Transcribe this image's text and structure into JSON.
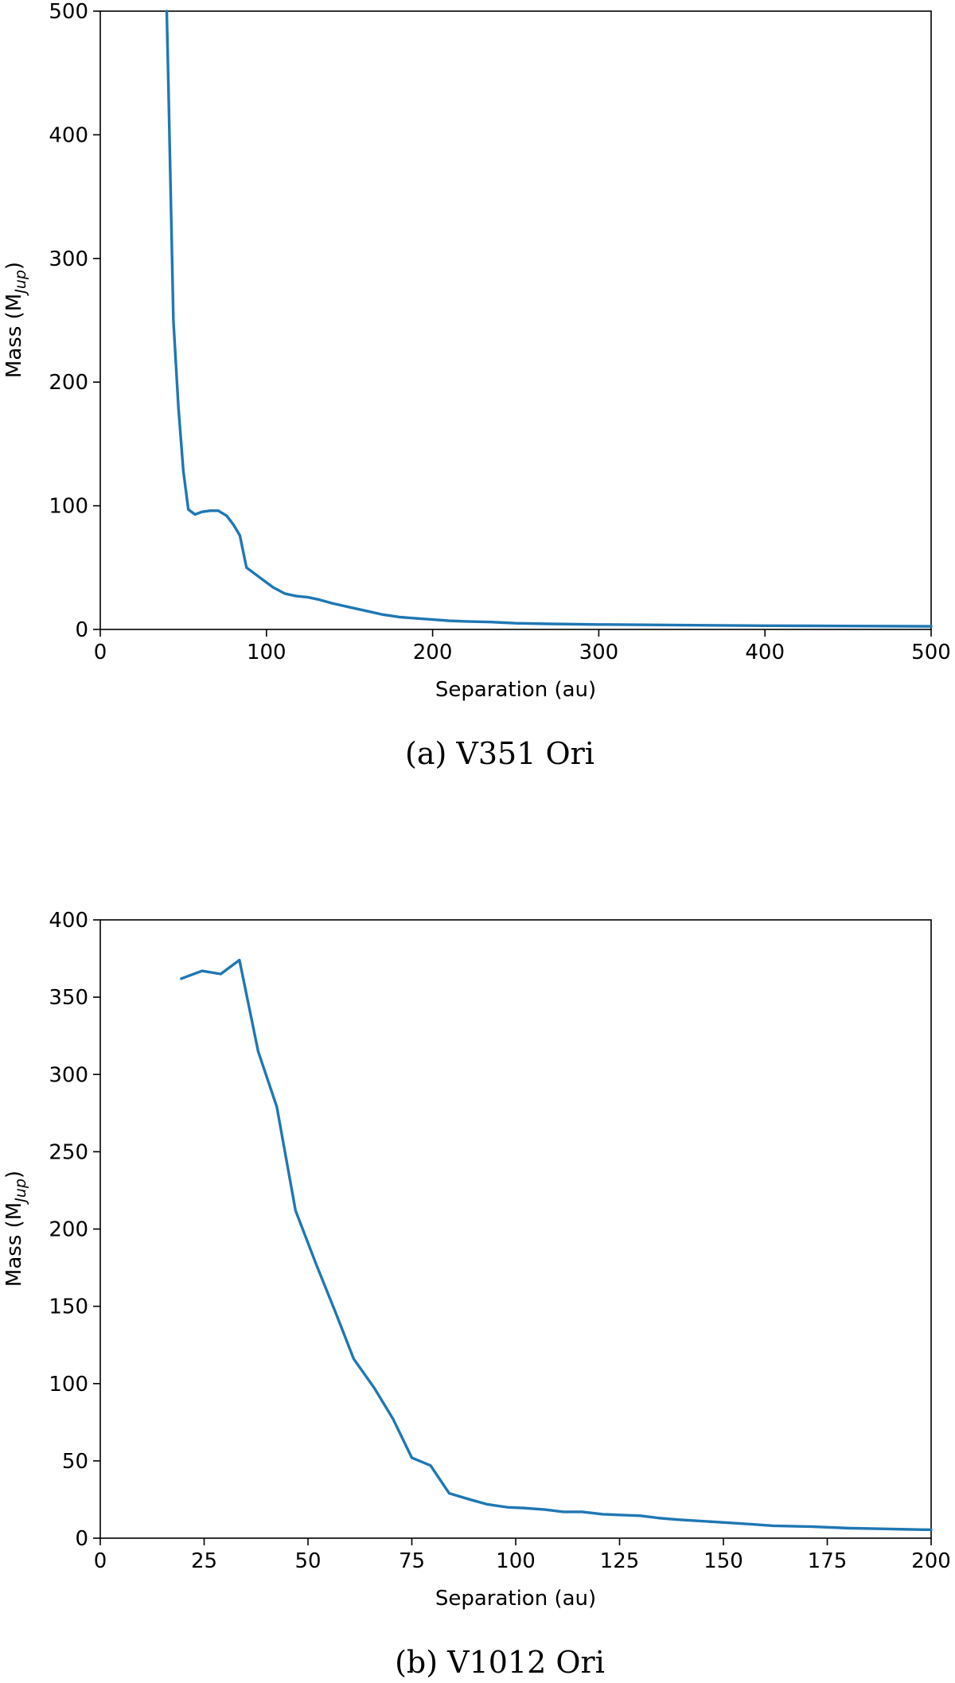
{
  "chart_data": [
    {
      "type": "line",
      "caption": "(a) V351 Ori",
      "xlabel": "Separation (au)",
      "ylabel_main": "Mass (M",
      "ylabel_sub": "Jup",
      "ylabel_end": ")",
      "xlim": [
        0,
        500
      ],
      "ylim": [
        0,
        500
      ],
      "xticks": [
        0,
        100,
        200,
        300,
        400,
        500
      ],
      "yticks": [
        0,
        100,
        200,
        300,
        400,
        500
      ],
      "color": "#1f77b4",
      "x": [
        40,
        41,
        44,
        47,
        50,
        53,
        57,
        61,
        66,
        71,
        76,
        80,
        84,
        88,
        93,
        98,
        104,
        111,
        118,
        125,
        132,
        140,
        150,
        160,
        170,
        180,
        190,
        200,
        210,
        220,
        235,
        250,
        270,
        300,
        350,
        400,
        450,
        500
      ],
      "series": [
        {
          "values": [
            500,
            440,
            250,
            180,
            128,
            97,
            93,
            95,
            96,
            96,
            92,
            85,
            76,
            50,
            45,
            40,
            34,
            29,
            27,
            26,
            24,
            21,
            18,
            15,
            12,
            10,
            9,
            8,
            7,
            6.5,
            6,
            5,
            4.5,
            4,
            3.5,
            3,
            2.8,
            2.5
          ]
        }
      ]
    },
    {
      "type": "line",
      "caption": "(b) V1012 Ori",
      "xlabel": "Separation (au)",
      "ylabel_main": "Mass (M",
      "ylabel_sub": "Jup",
      "ylabel_end": ")",
      "xlim": [
        0,
        200
      ],
      "ylim": [
        0,
        400
      ],
      "xticks": [
        0,
        25,
        50,
        75,
        100,
        125,
        150,
        175,
        200
      ],
      "yticks": [
        0,
        50,
        100,
        150,
        200,
        250,
        300,
        350,
        400
      ],
      "color": "#1f77b4",
      "x": [
        19.5,
        24.5,
        29,
        33.5,
        38,
        42.5,
        47,
        52,
        56.5,
        61,
        66,
        70.5,
        75,
        79.5,
        84,
        89,
        93,
        98,
        102,
        107,
        111.5,
        116,
        121,
        125,
        130,
        134.5,
        139,
        148,
        157,
        162,
        171,
        180,
        189,
        198,
        200
      ],
      "series": [
        {
          "values": [
            362,
            367,
            365,
            374,
            315,
            279,
            212,
            177,
            147,
            116,
            97,
            77,
            52,
            47,
            29,
            25,
            22,
            20,
            19.5,
            18.5,
            17,
            17,
            15.5,
            15,
            14.5,
            13,
            12,
            10.5,
            9,
            8,
            7.5,
            6.5,
            6,
            5.5,
            5.5
          ]
        }
      ]
    }
  ]
}
